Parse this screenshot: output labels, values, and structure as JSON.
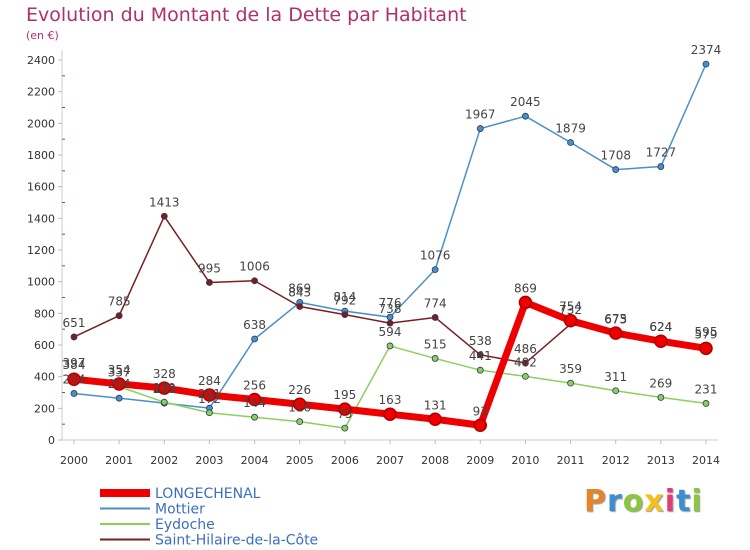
{
  "header": {
    "title": "Evolution du Montant de la Dette par Habitant",
    "subtitle": "(en €)"
  },
  "logo": {
    "text": "Proxiti",
    "letter_colors": [
      "#e6842a",
      "#3b8fd0",
      "#8cc640",
      "#f2c21b",
      "#e13d72",
      "#3b8fd0",
      "#8cc640"
    ]
  },
  "chart_data": {
    "type": "line",
    "title": "Evolution du Montant de la Dette par Habitant",
    "subtitle": "(en €)",
    "xlabel": "",
    "ylabel": "",
    "x": [
      "2000",
      "2001",
      "2002",
      "2003",
      "2004",
      "2005",
      "2006",
      "2007",
      "2008",
      "2009",
      "2010",
      "2011",
      "2012",
      "2013",
      "2014"
    ],
    "ylim": [
      0,
      2400
    ],
    "yticks": [
      0,
      200,
      400,
      600,
      800,
      1000,
      1200,
      1400,
      1600,
      1800,
      2000,
      2200,
      2400
    ],
    "grid": false,
    "legend_position": "bottom-left",
    "series": [
      {
        "name": "Mottier",
        "color": "#4a90c8",
        "values": [
          294,
          264,
          233,
          201,
          638,
          869,
          814,
          776,
          1076,
          1967,
          2045,
          1879,
          1708,
          1727,
          2374
        ]
      },
      {
        "name": "Eydoche",
        "color": "#8cd05c",
        "values": [
          397,
          337,
          239,
          172,
          144,
          116,
          75,
          594,
          515,
          441,
          402,
          359,
          311,
          269,
          231
        ]
      },
      {
        "name": "Saint-Hilaire-de-la-Côte",
        "color": "#7a1f1f",
        "values": [
          651,
          785,
          1413,
          995,
          1006,
          843,
          792,
          738,
          774,
          538,
          486,
          732,
          673,
          624,
          595
        ]
      },
      {
        "name": "LONGECHENAL",
        "color": "#ee0000",
        "values": [
          384,
          354,
          328,
          284,
          256,
          226,
          195,
          163,
          131,
          93,
          869,
          754,
          675,
          624,
          579
        ]
      }
    ]
  }
}
